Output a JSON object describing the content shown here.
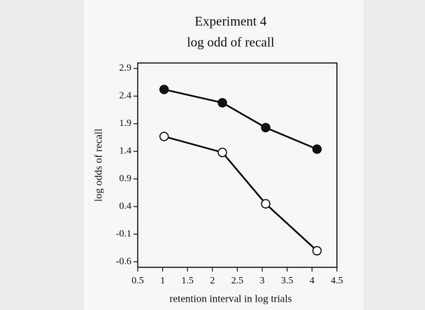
{
  "chart_data": {
    "type": "line",
    "title": [
      "Experiment 4",
      "log odd of recall"
    ],
    "x_label": "retention interval in log trials",
    "y_label": "log odds of recall",
    "x": [
      1.03,
      2.2,
      3.07,
      4.1
    ],
    "series": [
      {
        "color": "#111111",
        "marker": "filled",
        "values": [
          2.52,
          2.28,
          1.83,
          1.44
        ]
      },
      {
        "color": "#111111",
        "marker": "open",
        "values": [
          1.67,
          1.38,
          0.45,
          -0.4
        ]
      }
    ],
    "xlim": [
      0.5,
      4.5
    ],
    "xticks": [
      0.5,
      1,
      1.5,
      2,
      2.5,
      3,
      3.5,
      4,
      4.5
    ],
    "ylim": [
      -0.7,
      3.0
    ],
    "yticks": [
      -0.6,
      -0.1,
      0.4,
      0.9,
      1.4,
      1.9,
      2.4,
      2.9
    ]
  }
}
